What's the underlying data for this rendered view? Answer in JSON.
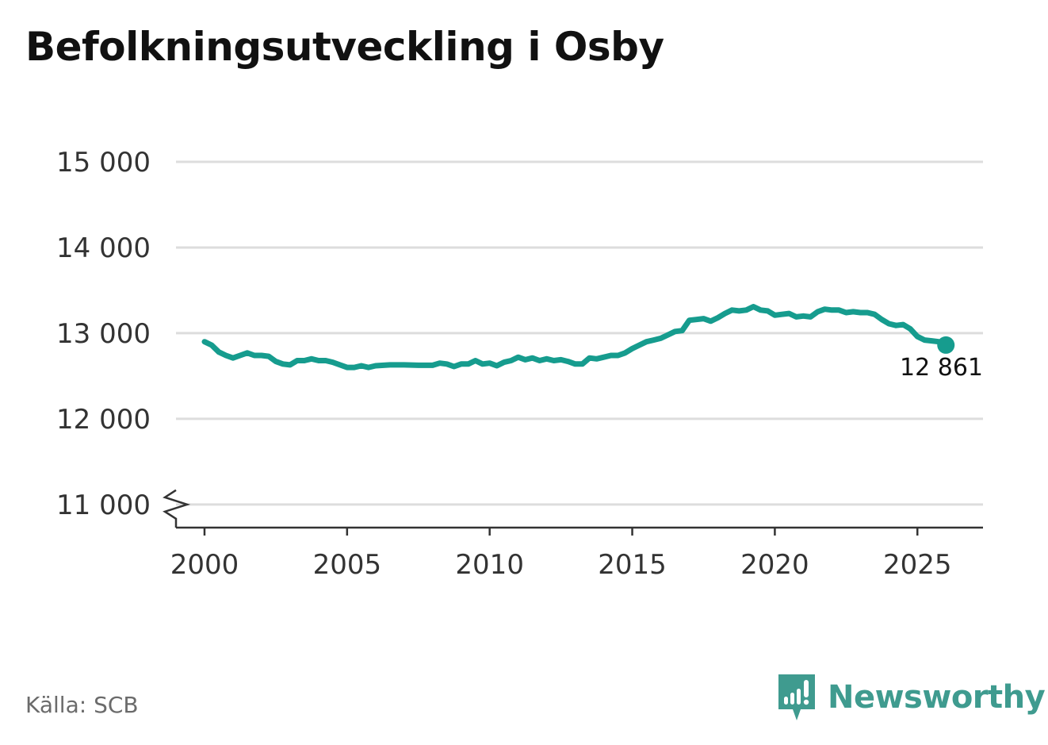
{
  "title": "Befolkningsutveckling i Osby",
  "source": "Källa: SCB",
  "brand": {
    "name": "Newsworthy",
    "icon": "newsworthy-logo-icon",
    "color": "#3f9b8f"
  },
  "colors": {
    "line": "#169c8e",
    "grid": "#dddddd",
    "axis": "#333333",
    "tick_text": "#333333"
  },
  "chart_data": {
    "type": "line",
    "title": "Befolkningsutveckling i Osby",
    "xlabel": "",
    "ylabel": "",
    "xlim": [
      1999,
      2027.3
    ],
    "ylim": [
      10730,
      15000
    ],
    "axis_break": true,
    "grid": true,
    "y_ticks": [
      11000,
      12000,
      13000,
      14000,
      15000
    ],
    "y_tick_labels": [
      "11 000",
      "12 000",
      "13 000",
      "14 000",
      "15 000"
    ],
    "x_ticks": [
      2000,
      2005,
      2010,
      2015,
      2020,
      2025
    ],
    "x_tick_labels": [
      "2000",
      "2005",
      "2010",
      "2015",
      "2020",
      "2025"
    ],
    "end_label": "12 861",
    "series": [
      {
        "x": [
          2000.0,
          2000.25,
          2000.5,
          2000.75,
          2001.0,
          2001.25,
          2001.5,
          2001.75,
          2002.0,
          2002.25,
          2002.5,
          2002.75,
          2003.0,
          2003.25,
          2003.5,
          2003.75,
          2004.0,
          2004.25,
          2004.5,
          2004.75,
          2005.0,
          2005.25,
          2005.5,
          2005.75,
          2006.0,
          2006.5,
          2007.0,
          2007.5,
          2008.0,
          2008.25,
          2008.5,
          2008.75,
          2009.0,
          2009.25,
          2009.5,
          2009.75,
          2010.0,
          2010.25,
          2010.5,
          2010.75,
          2011.0,
          2011.25,
          2011.5,
          2011.75,
          2012.0,
          2012.25,
          2012.5,
          2012.75,
          2013.0,
          2013.25,
          2013.5,
          2013.75,
          2014.0,
          2014.25,
          2014.5,
          2014.75,
          2015.0,
          2015.25,
          2015.5,
          2015.75,
          2016.0,
          2016.25,
          2016.5,
          2016.75,
          2017.0,
          2017.25,
          2017.5,
          2017.75,
          2018.0,
          2018.25,
          2018.5,
          2018.75,
          2019.0,
          2019.25,
          2019.5,
          2019.75,
          2020.0,
          2020.25,
          2020.5,
          2020.75,
          2021.0,
          2021.25,
          2021.5,
          2021.75,
          2022.0,
          2022.25,
          2022.5,
          2022.75,
          2023.0,
          2023.25,
          2023.5,
          2023.75,
          2024.0,
          2024.25,
          2024.5,
          2024.75,
          2025.0,
          2025.25,
          2025.5,
          2025.75,
          2026.0
        ],
        "values": [
          12900,
          12860,
          12780,
          12740,
          12710,
          12740,
          12770,
          12740,
          12740,
          12730,
          12670,
          12640,
          12630,
          12680,
          12680,
          12700,
          12680,
          12680,
          12660,
          12630,
          12600,
          12600,
          12620,
          12600,
          12620,
          12630,
          12630,
          12625,
          12625,
          12650,
          12640,
          12610,
          12640,
          12640,
          12680,
          12640,
          12650,
          12620,
          12660,
          12680,
          12720,
          12690,
          12710,
          12680,
          12700,
          12680,
          12690,
          12670,
          12640,
          12640,
          12710,
          12700,
          12720,
          12740,
          12740,
          12770,
          12820,
          12860,
          12900,
          12920,
          12940,
          12980,
          13020,
          13030,
          13150,
          13160,
          13170,
          13140,
          13180,
          13230,
          13270,
          13260,
          13270,
          13310,
          13270,
          13260,
          13210,
          13220,
          13230,
          13190,
          13200,
          13190,
          13250,
          13280,
          13270,
          13270,
          13240,
          13250,
          13240,
          13240,
          13220,
          13160,
          13110,
          13090,
          13100,
          13050,
          12960,
          12920,
          12910,
          12900,
          12861
        ]
      }
    ]
  }
}
